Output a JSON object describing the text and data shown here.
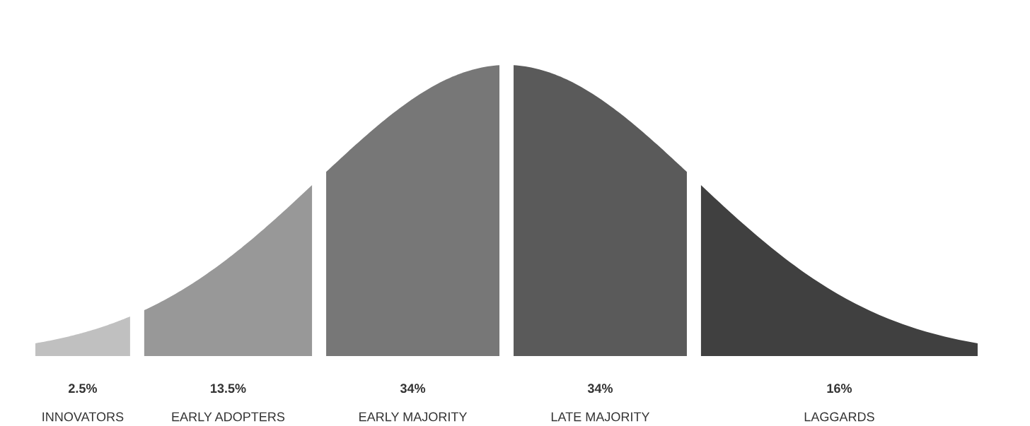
{
  "chart_data": {
    "type": "other",
    "categories": [
      "INNOVATORS",
      "EARLY ADOPTERS",
      "EARLY MAJORITY",
      "LATE MAJORITY",
      "LAGGARDS"
    ],
    "values": [
      2.5,
      13.5,
      34,
      34,
      16
    ],
    "colors": [
      "#c0c0c0",
      "#989898",
      "#777777",
      "#5a5a5a",
      "#404040"
    ],
    "value_labels": [
      "2.5%",
      "13.5%",
      "34%",
      "34%",
      "16%"
    ]
  }
}
